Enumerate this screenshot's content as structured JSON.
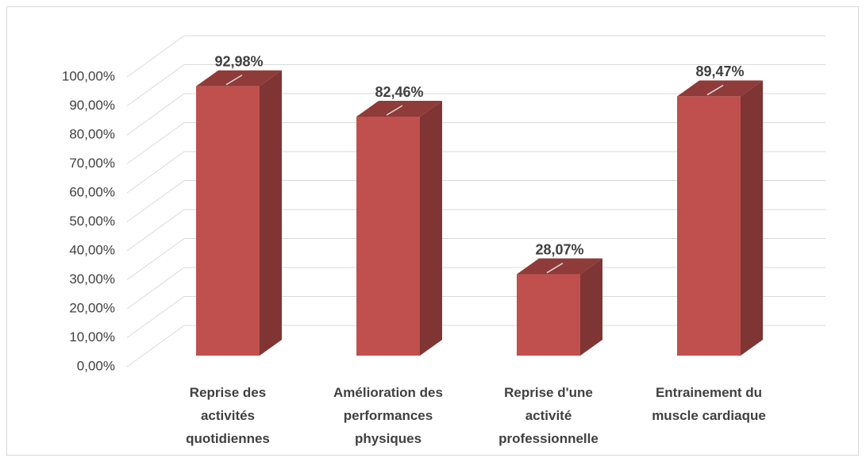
{
  "chart_data": {
    "type": "bar3d",
    "categories": [
      "Reprise des activités quotidiennes",
      "Amélioration des performances physiques",
      "Reprise d'une activité professionnelle",
      "Entrainement du muscle cardiaque"
    ],
    "values": [
      92.98,
      82.46,
      28.07,
      89.47
    ],
    "value_labels": [
      "92,98%",
      "82,46%",
      "28,07%",
      "89,47%"
    ],
    "color": "#c0504d",
    "ylim": [
      0,
      100
    ],
    "yticks": [
      {
        "value": 0,
        "label": "0,00%"
      },
      {
        "value": 10,
        "label": "10,00%"
      },
      {
        "value": 20,
        "label": "20,00%"
      },
      {
        "value": 30,
        "label": "30,00%"
      },
      {
        "value": 40,
        "label": "40,00%"
      },
      {
        "value": 50,
        "label": "50,00%"
      },
      {
        "value": 60,
        "label": "60,00%"
      },
      {
        "value": 70,
        "label": "70,00%"
      },
      {
        "value": 80,
        "label": "80,00%"
      },
      {
        "value": 90,
        "label": "90,00%"
      },
      {
        "value": 100,
        "label": "100,00%"
      }
    ],
    "grid": true
  }
}
